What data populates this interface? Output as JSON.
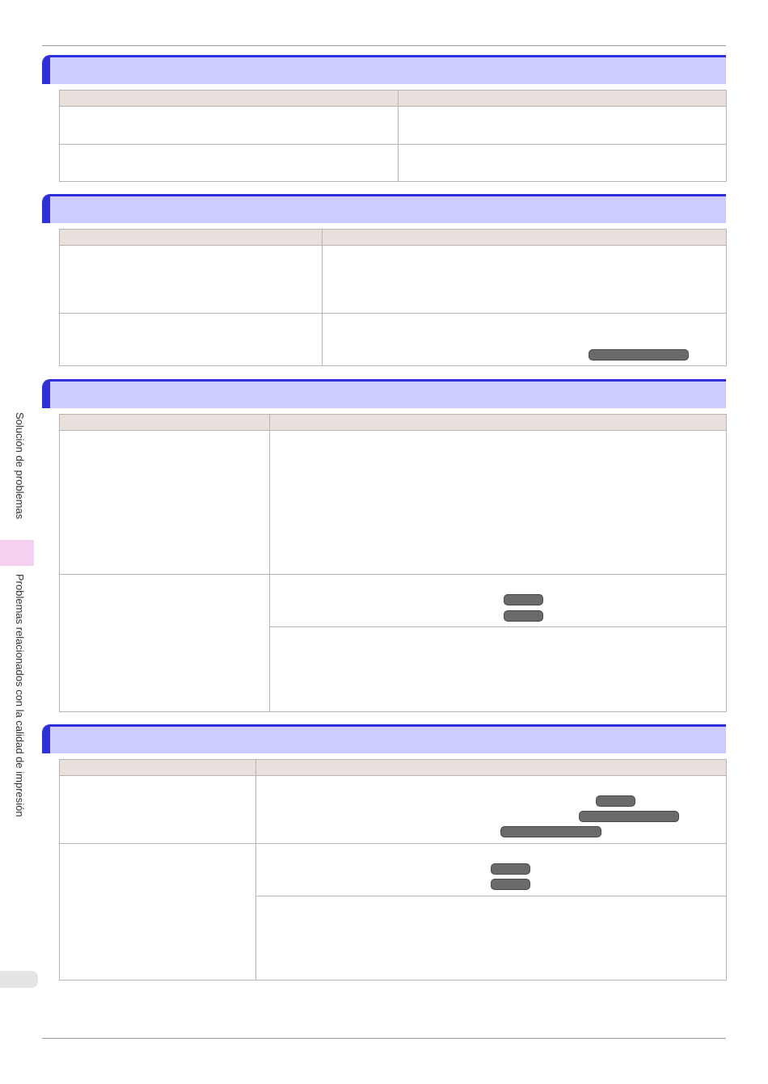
{
  "side_tab": {
    "chapter": "Solución de problemas",
    "section": "Problemas relacionados con la calidad de impresión"
  },
  "sections": [
    {
      "title": "",
      "headers": [
        "",
        ""
      ],
      "rows": [
        [
          "",
          ""
        ],
        [
          "",
          ""
        ]
      ]
    },
    {
      "title": "",
      "headers": [
        "",
        ""
      ],
      "rows": [
        [
          "",
          ""
        ],
        [
          "",
          ""
        ]
      ]
    },
    {
      "title": "",
      "headers": [
        "",
        ""
      ],
      "rows": [
        [
          "",
          ""
        ],
        [
          "",
          ""
        ],
        [
          "",
          ""
        ]
      ]
    },
    {
      "title": "",
      "headers": [
        "",
        ""
      ],
      "rows": [
        [
          "",
          ""
        ],
        [
          "",
          ""
        ],
        [
          "",
          ""
        ]
      ]
    }
  ],
  "links": [
    "",
    "",
    "",
    "",
    "",
    "",
    "",
    "",
    "",
    ""
  ],
  "page_number": ""
}
